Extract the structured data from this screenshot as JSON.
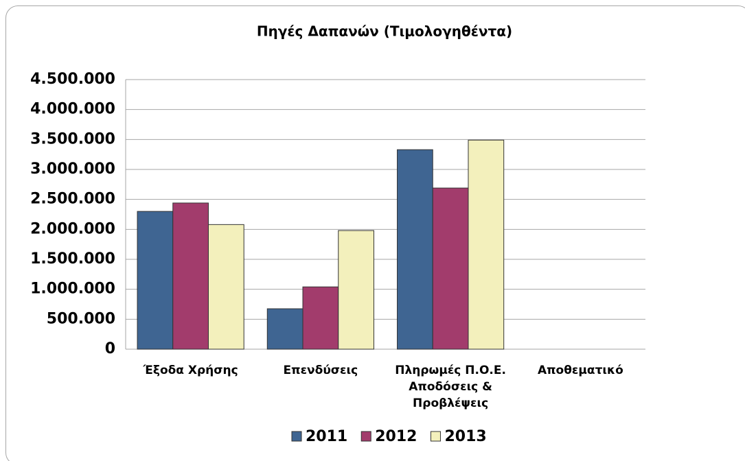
{
  "chart_data": {
    "type": "bar",
    "title": "Πηγές Δαπανών (Τιμολογηθέντα)",
    "categories": [
      "Έξοδα Χρήσης",
      "Επενδύσεις",
      "Πληρωμές Π.Ο.Ε. Αποδόσεις & Προβλέψεις",
      "Αποθεματικό"
    ],
    "series": [
      {
        "name": "2011",
        "color": "#3f6592",
        "values": [
          2300000,
          675000,
          3330000,
          0
        ]
      },
      {
        "name": "2012",
        "color": "#a23c6c",
        "values": [
          2440000,
          1040000,
          2690000,
          0
        ]
      },
      {
        "name": "2013",
        "color": "#f3f0bc",
        "values": [
          2080000,
          1980000,
          3490000,
          0
        ]
      }
    ],
    "ylim": [
      0,
      4500000
    ],
    "yticks": [
      0,
      {
        "value": 500000,
        "label": "500.000"
      },
      {
        "value": 1000000,
        "label": "1.000.000"
      },
      {
        "value": 1500000,
        "label": "1.500.000"
      },
      {
        "value": 2000000,
        "label": "2.000.000"
      },
      {
        "value": 2500000,
        "label": "2.500.000"
      },
      {
        "value": 3000000,
        "label": "3.000.000"
      },
      {
        "value": 3500000,
        "label": "3.500.000"
      },
      {
        "value": 4000000,
        "label": "4.000.000"
      },
      {
        "value": 4500000,
        "label": "4.500.000"
      }
    ],
    "grid": true,
    "legend": "bottom"
  }
}
